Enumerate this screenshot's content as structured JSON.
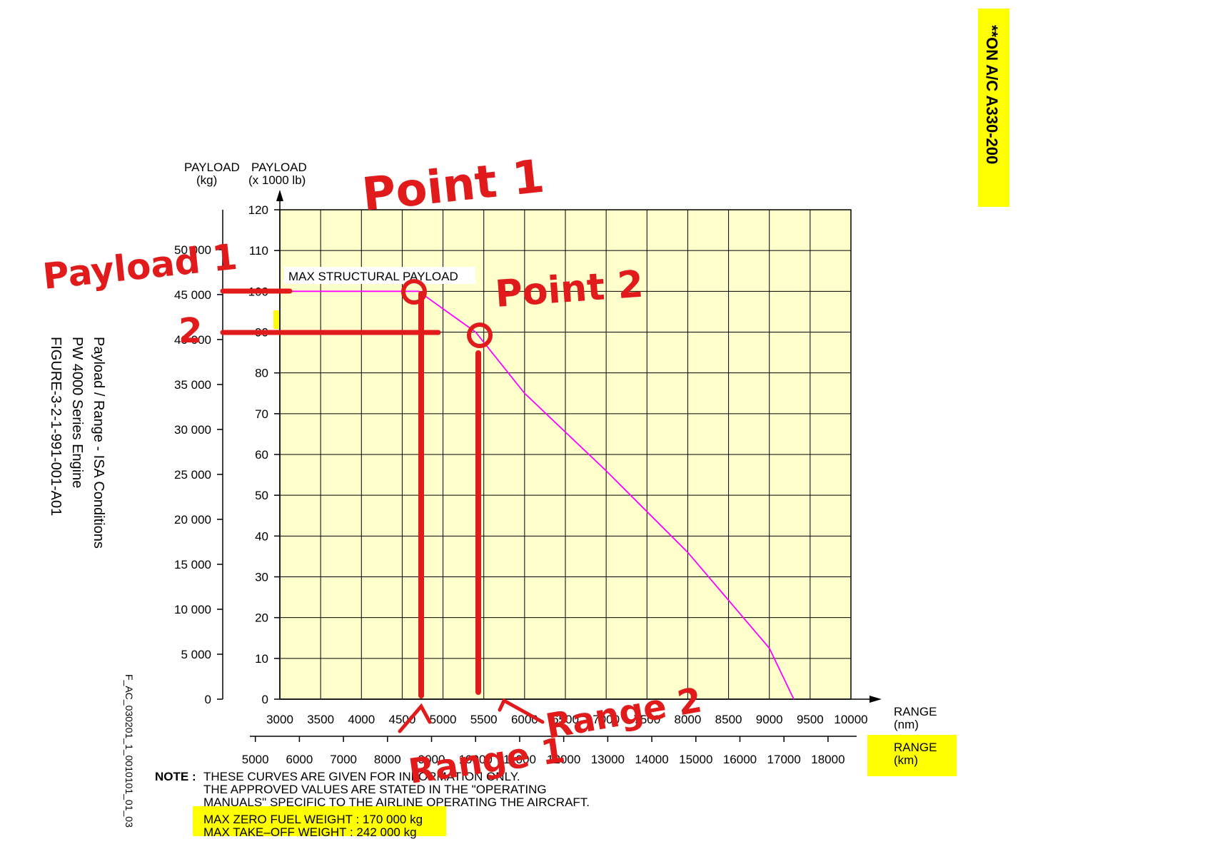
{
  "page_note": "**ON A/C A330-200",
  "side_caption": {
    "line1": "Payload / Range - ISA Conditions",
    "line2": "PW 4000 Series Engine",
    "line3": "FIGURE-3-2-1-991-001-A01"
  },
  "figure_code": "F_AC_030201_1_0010101_01_03",
  "annotations": {
    "point1": "Point 1",
    "point2": "Point 2",
    "payload1": "Payload 1",
    "payload2": "2",
    "range1": "Range 1",
    "range2": "Range 2"
  },
  "note": {
    "label": "NOTE :",
    "line1": "THESE CURVES ARE GIVEN FOR INFORMATION ONLY.",
    "line2": "THE APPROVED VALUES ARE STATED IN THE \"OPERATING",
    "line3": "MANUALS\" SPECIFIC TO THE AIRLINE OPERATING THE AIRCRAFT.",
    "mzfw": "MAX ZERO FUEL WEIGHT : 170 000 kg",
    "mtow": "MAX TAKE–OFF WEIGHT : 242 000 kg"
  },
  "colors": {
    "plot_background": "#ffffcc",
    "curve": "#ff00ff",
    "annotation": "#e11b1b",
    "highlight": "#ffff00"
  },
  "chart_data": {
    "type": "line",
    "title": "",
    "curve_label": "MAX STRUCTURAL PAYLOAD",
    "y_left": {
      "label_line1": "PAYLOAD",
      "label_line2": "(kg)",
      "range": [
        0,
        50000
      ],
      "ticks": [
        0,
        5000,
        10000,
        15000,
        20000,
        25000,
        30000,
        35000,
        40000,
        45000,
        50000
      ],
      "tick_labels": [
        "0",
        "5 000",
        "10 000",
        "15 000",
        "20 000",
        "25 000",
        "30 000",
        "35 000",
        "40 000",
        "45 000",
        "50 000"
      ]
    },
    "y_right": {
      "label_line1": "PAYLOAD",
      "label_line2": "(x 1000 lb)",
      "range": [
        0,
        120
      ],
      "ticks": [
        0,
        10,
        20,
        30,
        40,
        50,
        60,
        70,
        80,
        90,
        100,
        110,
        120
      ],
      "tick_labels": [
        "0",
        "10",
        "20",
        "30",
        "40",
        "50",
        "60",
        "70",
        "80",
        "90",
        "100",
        "110",
        "120"
      ]
    },
    "x_nm": {
      "label_line1": "RANGE",
      "label_line2": "(nm)",
      "range": [
        3000,
        10000
      ],
      "ticks": [
        3000,
        3500,
        4000,
        4500,
        5000,
        5500,
        6000,
        6500,
        7000,
        7500,
        8000,
        8500,
        9000,
        9500,
        10000
      ],
      "tick_labels": [
        "3000",
        "3500",
        "4000",
        "4500",
        "5000",
        "5500",
        "6000",
        "6500",
        "7000",
        "7500",
        "8000",
        "8500",
        "9000",
        "9500",
        "10000"
      ]
    },
    "x_km": {
      "label_line1": "RANGE",
      "label_line2": "(km)",
      "ticks": [
        5000,
        6000,
        7000,
        8000,
        9000,
        10000,
        11000,
        12000,
        13000,
        14000,
        15000,
        16000,
        17000,
        18000
      ],
      "tick_labels": [
        "5000",
        "6000",
        "7000",
        "8000",
        "9000",
        "10000",
        "11000",
        "12000",
        "13000",
        "14000",
        "15000",
        "16000",
        "17000",
        "18000"
      ]
    },
    "grid": true,
    "series": [
      {
        "x": [
          3000,
          4700,
          5400,
          6000,
          7000,
          8000,
          9000,
          9300
        ],
        "y_klb": [
          100,
          100,
          90,
          75,
          56,
          36,
          12.5,
          0
        ]
      }
    ],
    "points": [
      {
        "label": "Point 1",
        "x": 4700,
        "y_klb": 100
      },
      {
        "label": "Point 2",
        "x": 5400,
        "y_klb": 90
      }
    ]
  }
}
